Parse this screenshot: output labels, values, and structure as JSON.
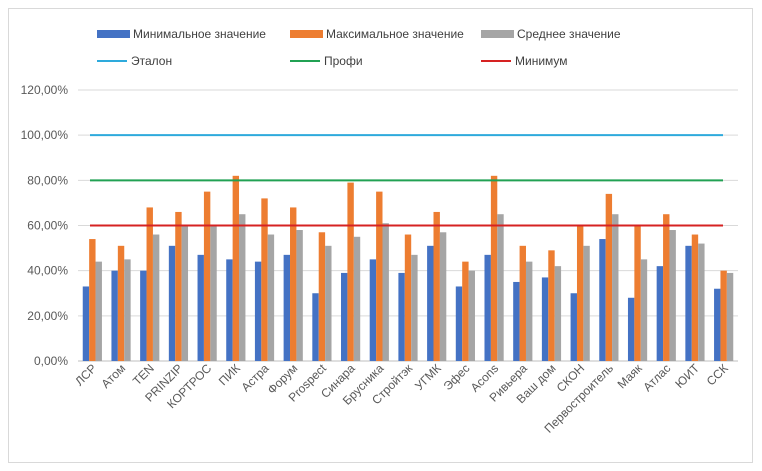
{
  "chart_data": {
    "type": "bar",
    "categories": [
      "ЛСР",
      "Атом",
      "TEN",
      "PRINZIP",
      "КОРТРОС",
      "ПИК",
      "Астра",
      "Форум",
      "Prospect",
      "Синара",
      "Брусника",
      "Стройтэк",
      "УГМК",
      "Эфес",
      "Acons",
      "Ривьера",
      "Ваш дом",
      "СКОН",
      "Первостроитель",
      "Маяк",
      "Атлас",
      "ЮИТ",
      "ССК"
    ],
    "series": [
      {
        "name": "Минимальное значение",
        "color": "#4472c4",
        "values": [
          33,
          40,
          40,
          51,
          47,
          45,
          44,
          47,
          30,
          39,
          45,
          39,
          51,
          33,
          47,
          35,
          37,
          30,
          54,
          28,
          42,
          51,
          32
        ]
      },
      {
        "name": "Максимальное значение",
        "color": "#ed7d31",
        "values": [
          54,
          51,
          68,
          66,
          75,
          82,
          72,
          68,
          57,
          79,
          75,
          56,
          66,
          44,
          82,
          51,
          49,
          60,
          74,
          60,
          65,
          56,
          40
        ]
      },
      {
        "name": "Среднее значение",
        "color": "#a5a5a5",
        "values": [
          44,
          45,
          56,
          60,
          60,
          65,
          56,
          58,
          51,
          55,
          61,
          47,
          57,
          40,
          65,
          44,
          42,
          51,
          65,
          45,
          58,
          52,
          39
        ]
      }
    ],
    "reference_lines": [
      {
        "name": "Эталон",
        "value": 100,
        "color": "#2eaadc"
      },
      {
        "name": "Профи",
        "value": 80,
        "color": "#21a153"
      },
      {
        "name": "Минимум",
        "value": 60,
        "color": "#d62222"
      }
    ],
    "y_ticks": [
      "0,00%",
      "20,00%",
      "40,00%",
      "60,00%",
      "80,00%",
      "100,00%",
      "120,00%"
    ],
    "ylim": [
      0,
      120
    ],
    "grid": true,
    "legend_position": "top"
  }
}
